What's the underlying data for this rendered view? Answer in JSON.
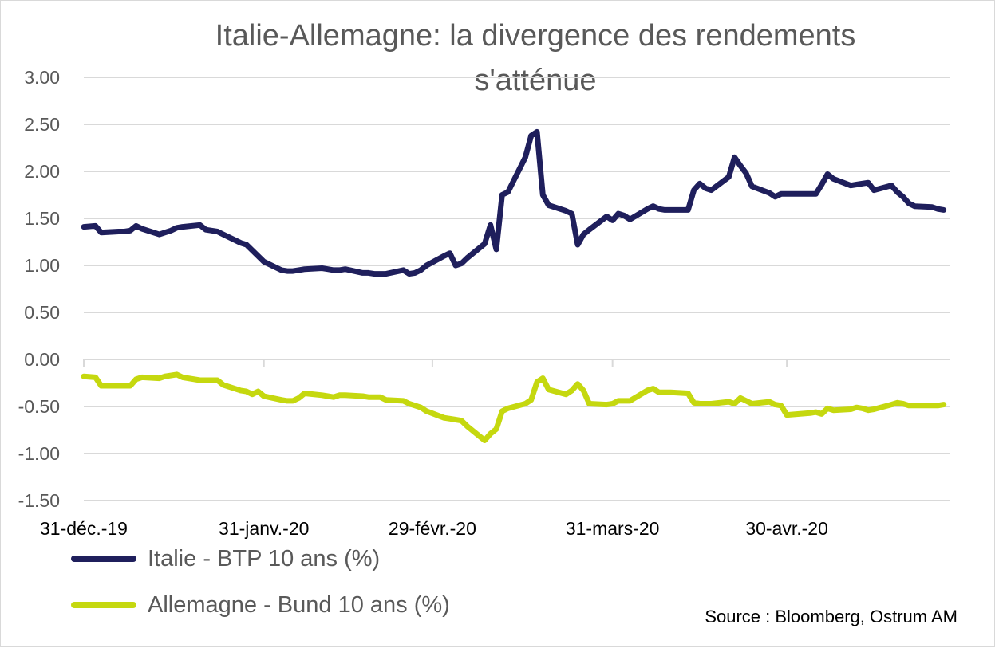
{
  "colors": {
    "italy": "#1f1f5c",
    "germany": "#c5d80f",
    "grid": "#d9d9d9",
    "axis_text": "#595959"
  },
  "legend": {
    "italy_label": "Italie - BTP 10 ans (%)",
    "germany_label": "Allemagne - Bund 10 ans (%)"
  },
  "source": "Source : Bloomberg, Ostrum AM",
  "chart_data": {
    "type": "line",
    "title_lines": [
      "Italie-Allemagne: la divergence des rendements",
      "s'atténue"
    ],
    "xlabel": "",
    "ylabel": "",
    "ylim": [
      -1.5,
      3.0
    ],
    "y_ticks": [
      "3.00",
      "2.50",
      "2.00",
      "1.50",
      "1.00",
      "0.50",
      "0.00",
      "-0.50",
      "-1.00",
      "-1.50"
    ],
    "x_range": [
      "2019-12-31",
      "2020-05-28"
    ],
    "x_ticks": [
      {
        "date": "2019-12-31",
        "label": "31-déc.-19"
      },
      {
        "date": "2020-01-31",
        "label": "31-janv.-20"
      },
      {
        "date": "2020-02-29",
        "label": "29-févr.-20"
      },
      {
        "date": "2020-03-31",
        "label": "31-mars-20"
      },
      {
        "date": "2020-04-30",
        "label": "30-avr.-20"
      }
    ],
    "grid": true,
    "legend_position": "bottom-left",
    "series": [
      {
        "name": "Italie - BTP 10 ans (%)",
        "points": [
          [
            "2019-12-31",
            1.41
          ],
          [
            "2020-01-02",
            1.42
          ],
          [
            "2020-01-03",
            1.35
          ],
          [
            "2020-01-06",
            1.36
          ],
          [
            "2020-01-07",
            1.36
          ],
          [
            "2020-01-08",
            1.37
          ],
          [
            "2020-01-09",
            1.42
          ],
          [
            "2020-01-10",
            1.39
          ],
          [
            "2020-01-13",
            1.33
          ],
          [
            "2020-01-14",
            1.35
          ],
          [
            "2020-01-15",
            1.37
          ],
          [
            "2020-01-16",
            1.4
          ],
          [
            "2020-01-17",
            1.41
          ],
          [
            "2020-01-20",
            1.43
          ],
          [
            "2020-01-21",
            1.38
          ],
          [
            "2020-01-22",
            1.37
          ],
          [
            "2020-01-23",
            1.36
          ],
          [
            "2020-01-24",
            1.33
          ],
          [
            "2020-01-27",
            1.24
          ],
          [
            "2020-01-28",
            1.22
          ],
          [
            "2020-01-29",
            1.16
          ],
          [
            "2020-01-30",
            1.1
          ],
          [
            "2020-01-31",
            1.04
          ],
          [
            "2020-02-03",
            0.95
          ],
          [
            "2020-02-04",
            0.94
          ],
          [
            "2020-02-05",
            0.94
          ],
          [
            "2020-02-06",
            0.95
          ],
          [
            "2020-02-07",
            0.96
          ],
          [
            "2020-02-10",
            0.97
          ],
          [
            "2020-02-11",
            0.96
          ],
          [
            "2020-02-12",
            0.95
          ],
          [
            "2020-02-13",
            0.95
          ],
          [
            "2020-02-14",
            0.96
          ],
          [
            "2020-02-17",
            0.92
          ],
          [
            "2020-02-18",
            0.92
          ],
          [
            "2020-02-19",
            0.91
          ],
          [
            "2020-02-20",
            0.91
          ],
          [
            "2020-02-21",
            0.91
          ],
          [
            "2020-02-24",
            0.95
          ],
          [
            "2020-02-25",
            0.91
          ],
          [
            "2020-02-26",
            0.92
          ],
          [
            "2020-02-27",
            0.95
          ],
          [
            "2020-02-28",
            1.0
          ],
          [
            "2020-03-02",
            1.1
          ],
          [
            "2020-03-03",
            1.13
          ],
          [
            "2020-03-04",
            1.0
          ],
          [
            "2020-03-05",
            1.02
          ],
          [
            "2020-03-06",
            1.08
          ],
          [
            "2020-03-09",
            1.23
          ],
          [
            "2020-03-10",
            1.43
          ],
          [
            "2020-03-11",
            1.17
          ],
          [
            "2020-03-12",
            1.75
          ],
          [
            "2020-03-13",
            1.78
          ],
          [
            "2020-03-16",
            2.15
          ],
          [
            "2020-03-17",
            2.38
          ],
          [
            "2020-03-18",
            2.42
          ],
          [
            "2020-03-19",
            1.75
          ],
          [
            "2020-03-20",
            1.64
          ],
          [
            "2020-03-23",
            1.58
          ],
          [
            "2020-03-24",
            1.55
          ],
          [
            "2020-03-25",
            1.22
          ],
          [
            "2020-03-26",
            1.33
          ],
          [
            "2020-03-27",
            1.38
          ],
          [
            "2020-03-30",
            1.52
          ],
          [
            "2020-03-31",
            1.48
          ],
          [
            "2020-04-01",
            1.55
          ],
          [
            "2020-04-02",
            1.53
          ],
          [
            "2020-04-03",
            1.49
          ],
          [
            "2020-04-06",
            1.6
          ],
          [
            "2020-04-07",
            1.63
          ],
          [
            "2020-04-08",
            1.6
          ],
          [
            "2020-04-09",
            1.59
          ],
          [
            "2020-04-10",
            1.59
          ],
          [
            "2020-04-13",
            1.59
          ],
          [
            "2020-04-14",
            1.8
          ],
          [
            "2020-04-15",
            1.87
          ],
          [
            "2020-04-16",
            1.82
          ],
          [
            "2020-04-17",
            1.8
          ],
          [
            "2020-04-20",
            1.94
          ],
          [
            "2020-04-21",
            2.15
          ],
          [
            "2020-04-22",
            2.06
          ],
          [
            "2020-04-23",
            1.98
          ],
          [
            "2020-04-24",
            1.84
          ],
          [
            "2020-04-27",
            1.77
          ],
          [
            "2020-04-28",
            1.73
          ],
          [
            "2020-04-29",
            1.76
          ],
          [
            "2020-04-30",
            1.76
          ],
          [
            "2020-05-04",
            1.76
          ],
          [
            "2020-05-05",
            1.76
          ],
          [
            "2020-05-06",
            1.86
          ],
          [
            "2020-05-07",
            1.97
          ],
          [
            "2020-05-08",
            1.92
          ],
          [
            "2020-05-11",
            1.85
          ],
          [
            "2020-05-12",
            1.86
          ],
          [
            "2020-05-13",
            1.87
          ],
          [
            "2020-05-14",
            1.88
          ],
          [
            "2020-05-15",
            1.8
          ],
          [
            "2020-05-18",
            1.85
          ],
          [
            "2020-05-19",
            1.78
          ],
          [
            "2020-05-20",
            1.73
          ],
          [
            "2020-05-21",
            1.66
          ],
          [
            "2020-05-22",
            1.63
          ],
          [
            "2020-05-25",
            1.62
          ],
          [
            "2020-05-26",
            1.6
          ],
          [
            "2020-05-27",
            1.59
          ]
        ]
      },
      {
        "name": "Allemagne - Bund 10 ans (%)",
        "points": [
          [
            "2019-12-31",
            -0.18
          ],
          [
            "2020-01-02",
            -0.19
          ],
          [
            "2020-01-03",
            -0.28
          ],
          [
            "2020-01-06",
            -0.28
          ],
          [
            "2020-01-07",
            -0.28
          ],
          [
            "2020-01-08",
            -0.28
          ],
          [
            "2020-01-09",
            -0.21
          ],
          [
            "2020-01-10",
            -0.19
          ],
          [
            "2020-01-13",
            -0.2
          ],
          [
            "2020-01-14",
            -0.18
          ],
          [
            "2020-01-15",
            -0.17
          ],
          [
            "2020-01-16",
            -0.16
          ],
          [
            "2020-01-17",
            -0.19
          ],
          [
            "2020-01-20",
            -0.22
          ],
          [
            "2020-01-21",
            -0.22
          ],
          [
            "2020-01-22",
            -0.22
          ],
          [
            "2020-01-23",
            -0.22
          ],
          [
            "2020-01-24",
            -0.27
          ],
          [
            "2020-01-27",
            -0.33
          ],
          [
            "2020-01-28",
            -0.34
          ],
          [
            "2020-01-29",
            -0.37
          ],
          [
            "2020-01-30",
            -0.34
          ],
          [
            "2020-01-31",
            -0.39
          ],
          [
            "2020-02-03",
            -0.43
          ],
          [
            "2020-02-04",
            -0.44
          ],
          [
            "2020-02-05",
            -0.44
          ],
          [
            "2020-02-06",
            -0.41
          ],
          [
            "2020-02-07",
            -0.36
          ],
          [
            "2020-02-10",
            -0.38
          ],
          [
            "2020-02-11",
            -0.39
          ],
          [
            "2020-02-12",
            -0.4
          ],
          [
            "2020-02-13",
            -0.38
          ],
          [
            "2020-02-14",
            -0.38
          ],
          [
            "2020-02-17",
            -0.39
          ],
          [
            "2020-02-18",
            -0.4
          ],
          [
            "2020-02-19",
            -0.4
          ],
          [
            "2020-02-20",
            -0.4
          ],
          [
            "2020-02-21",
            -0.43
          ],
          [
            "2020-02-24",
            -0.44
          ],
          [
            "2020-02-25",
            -0.47
          ],
          [
            "2020-02-26",
            -0.49
          ],
          [
            "2020-02-27",
            -0.51
          ],
          [
            "2020-02-28",
            -0.55
          ],
          [
            "2020-03-02",
            -0.62
          ],
          [
            "2020-03-03",
            -0.63
          ],
          [
            "2020-03-04",
            -0.64
          ],
          [
            "2020-03-05",
            -0.65
          ],
          [
            "2020-03-06",
            -0.71
          ],
          [
            "2020-03-09",
            -0.86
          ],
          [
            "2020-03-10",
            -0.79
          ],
          [
            "2020-03-11",
            -0.74
          ],
          [
            "2020-03-12",
            -0.55
          ],
          [
            "2020-03-13",
            -0.52
          ],
          [
            "2020-03-16",
            -0.47
          ],
          [
            "2020-03-17",
            -0.43
          ],
          [
            "2020-03-18",
            -0.24
          ],
          [
            "2020-03-19",
            -0.2
          ],
          [
            "2020-03-20",
            -0.32
          ],
          [
            "2020-03-23",
            -0.37
          ],
          [
            "2020-03-24",
            -0.33
          ],
          [
            "2020-03-25",
            -0.26
          ],
          [
            "2020-03-26",
            -0.33
          ],
          [
            "2020-03-27",
            -0.47
          ],
          [
            "2020-03-30",
            -0.48
          ],
          [
            "2020-03-31",
            -0.47
          ],
          [
            "2020-04-01",
            -0.44
          ],
          [
            "2020-04-02",
            -0.44
          ],
          [
            "2020-04-03",
            -0.44
          ],
          [
            "2020-04-06",
            -0.33
          ],
          [
            "2020-04-07",
            -0.31
          ],
          [
            "2020-04-08",
            -0.35
          ],
          [
            "2020-04-09",
            -0.35
          ],
          [
            "2020-04-10",
            -0.35
          ],
          [
            "2020-04-13",
            -0.36
          ],
          [
            "2020-04-14",
            -0.46
          ],
          [
            "2020-04-15",
            -0.47
          ],
          [
            "2020-04-16",
            -0.47
          ],
          [
            "2020-04-17",
            -0.47
          ],
          [
            "2020-04-20",
            -0.45
          ],
          [
            "2020-04-21",
            -0.47
          ],
          [
            "2020-04-22",
            -0.41
          ],
          [
            "2020-04-23",
            -0.44
          ],
          [
            "2020-04-24",
            -0.47
          ],
          [
            "2020-04-27",
            -0.45
          ],
          [
            "2020-04-28",
            -0.48
          ],
          [
            "2020-04-29",
            -0.49
          ],
          [
            "2020-04-30",
            -0.59
          ],
          [
            "2020-05-04",
            -0.57
          ],
          [
            "2020-05-05",
            -0.56
          ],
          [
            "2020-05-06",
            -0.58
          ],
          [
            "2020-05-07",
            -0.52
          ],
          [
            "2020-05-08",
            -0.54
          ],
          [
            "2020-05-11",
            -0.53
          ],
          [
            "2020-05-12",
            -0.51
          ],
          [
            "2020-05-13",
            -0.52
          ],
          [
            "2020-05-14",
            -0.54
          ],
          [
            "2020-05-15",
            -0.53
          ],
          [
            "2020-05-18",
            -0.48
          ],
          [
            "2020-05-19",
            -0.46
          ],
          [
            "2020-05-20",
            -0.47
          ],
          [
            "2020-05-21",
            -0.49
          ],
          [
            "2020-05-22",
            -0.49
          ],
          [
            "2020-05-25",
            -0.49
          ],
          [
            "2020-05-26",
            -0.49
          ],
          [
            "2020-05-27",
            -0.48
          ]
        ]
      }
    ]
  }
}
